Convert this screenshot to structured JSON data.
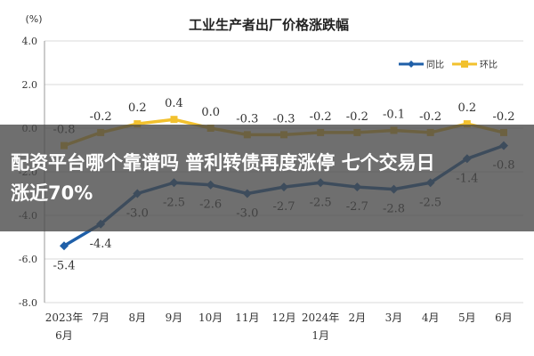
{
  "headline": {
    "line1": "配资平台哪个靠谱吗 普利转债再度涨停 七个交易日",
    "line2": "涨近70%"
  },
  "chart_data": {
    "type": "line",
    "title": "工业生产者出厂价格涨跌幅",
    "ylabel": "(%)",
    "ylim": [
      -8.0,
      4.0
    ],
    "yticks": [
      "4.0",
      "2.0",
      "0.0",
      "-2.0",
      "-4.0",
      "-6.0",
      "-8.0"
    ],
    "ytick_values": [
      4,
      2,
      0,
      -2,
      -4,
      -6,
      -8
    ],
    "categories": [
      [
        "2023年",
        "6月"
      ],
      [
        "7月"
      ],
      [
        "8月"
      ],
      [
        "9月"
      ],
      [
        "10月"
      ],
      [
        "11月"
      ],
      [
        "12月"
      ],
      [
        "2024年",
        "1月"
      ],
      [
        "2月"
      ],
      [
        "3月"
      ],
      [
        "4月"
      ],
      [
        "5月"
      ],
      [
        "6月"
      ]
    ],
    "grid": true,
    "legend_position": "top-right",
    "series": [
      {
        "name": "同比",
        "color": "#1f5fa8",
        "values": [
          -5.4,
          -4.4,
          -3.0,
          -2.5,
          -2.6,
          -3.0,
          -2.7,
          -2.5,
          -2.7,
          -2.8,
          -2.5,
          -1.4,
          -0.8
        ],
        "labels": [
          "-5.4",
          "-4.4",
          "-3.0",
          "-2.5",
          "-2.6",
          "-3.0",
          "-2.7",
          "-2.5",
          "-2.7",
          "-2.8",
          "-2.5",
          "-1.4",
          "-0.8"
        ]
      },
      {
        "name": "环比",
        "color": "#f2c12e",
        "values": [
          -0.8,
          -0.2,
          0.2,
          0.4,
          0.0,
          -0.3,
          -0.3,
          -0.2,
          -0.2,
          -0.1,
          -0.2,
          0.2,
          -0.2
        ],
        "labels": [
          "-0.8",
          "-0.2",
          "0.2",
          "0.4",
          "0.0",
          "-0.3",
          "-0.3",
          "-0.2",
          "-0.2",
          "-0.1",
          "-0.2",
          "0.2",
          "-0.2"
        ]
      }
    ]
  }
}
